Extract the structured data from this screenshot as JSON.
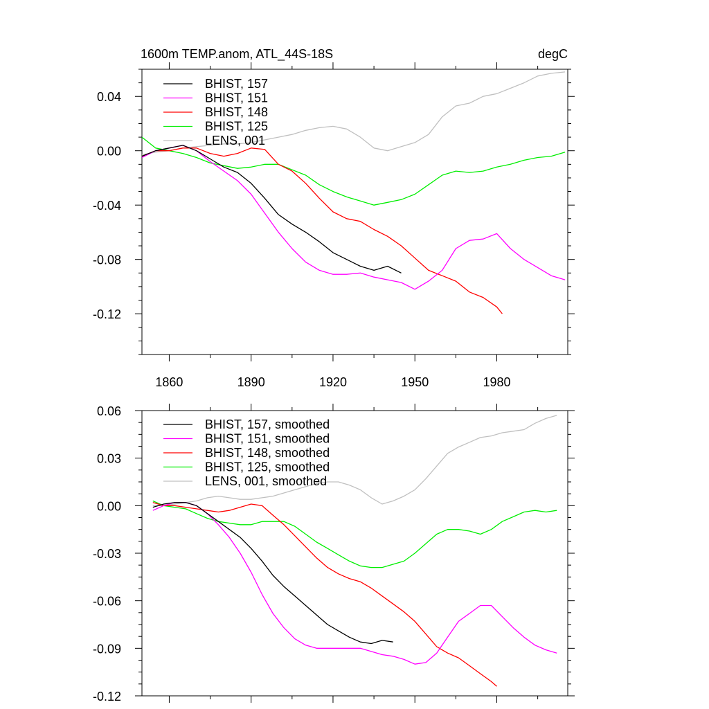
{
  "chart_data": [
    {
      "type": "line",
      "title": "1600m TEMP.anom, ATL_44S-18S",
      "units": "degC",
      "xlim": [
        1850,
        2006
      ],
      "ylim": [
        -0.15,
        0.06
      ],
      "xticks": [
        1860,
        1890,
        1920,
        1950,
        1980
      ],
      "yticks": [
        -0.12,
        -0.08,
        -0.04,
        0.0,
        0.04
      ],
      "ytick_labels": [
        "-0.12",
        "-0.08",
        "-0.04",
        "0.00",
        "0.04"
      ],
      "grid": false,
      "legend_position": "top-left",
      "series": [
        {
          "name": "BHIST, 157",
          "color": "#000000",
          "x": [
            1850,
            1855,
            1860,
            1865,
            1870,
            1875,
            1880,
            1885,
            1890,
            1895,
            1900,
            1905,
            1910,
            1915,
            1920,
            1925,
            1930,
            1935,
            1940,
            1945
          ],
          "y": [
            -0.004,
            0.0,
            0.002,
            0.004,
            0.0,
            -0.006,
            -0.012,
            -0.016,
            -0.024,
            -0.035,
            -0.047,
            -0.054,
            -0.06,
            -0.067,
            -0.075,
            -0.08,
            -0.085,
            -0.088,
            -0.085,
            -0.09
          ]
        },
        {
          "name": "BHIST, 151",
          "color": "#ff00ff",
          "x": [
            1850,
            1855,
            1860,
            1865,
            1870,
            1875,
            1880,
            1885,
            1890,
            1895,
            1900,
            1905,
            1910,
            1915,
            1920,
            1925,
            1930,
            1935,
            1940,
            1945,
            1950,
            1955,
            1960,
            1965,
            1970,
            1975,
            1980,
            1985,
            1990,
            1995,
            2000,
            2005
          ],
          "y": [
            -0.005,
            0.0,
            0.002,
            0.004,
            0.0,
            -0.008,
            -0.015,
            -0.022,
            -0.032,
            -0.046,
            -0.06,
            -0.072,
            -0.082,
            -0.088,
            -0.091,
            -0.091,
            -0.09,
            -0.093,
            -0.095,
            -0.097,
            -0.102,
            -0.096,
            -0.088,
            -0.072,
            -0.066,
            -0.065,
            -0.061,
            -0.072,
            -0.08,
            -0.086,
            -0.092,
            -0.095
          ]
        },
        {
          "name": "BHIST, 148",
          "color": "#ff0000",
          "x": [
            1850,
            1855,
            1860,
            1865,
            1870,
            1875,
            1880,
            1885,
            1890,
            1895,
            1900,
            1905,
            1910,
            1915,
            1920,
            1925,
            1930,
            1935,
            1940,
            1945,
            1950,
            1955,
            1960,
            1965,
            1970,
            1975,
            1980,
            1982
          ],
          "y": [
            -0.004,
            0.0,
            0.0,
            0.002,
            0.002,
            -0.002,
            -0.004,
            -0.002,
            0.002,
            0.001,
            -0.01,
            -0.015,
            -0.024,
            -0.035,
            -0.045,
            -0.05,
            -0.052,
            -0.058,
            -0.063,
            -0.07,
            -0.079,
            -0.088,
            -0.092,
            -0.096,
            -0.104,
            -0.108,
            -0.115,
            -0.12
          ]
        },
        {
          "name": "BHIST, 125",
          "color": "#00ee00",
          "x": [
            1850,
            1855,
            1860,
            1865,
            1870,
            1875,
            1880,
            1885,
            1890,
            1895,
            1900,
            1905,
            1910,
            1915,
            1920,
            1925,
            1930,
            1935,
            1940,
            1945,
            1950,
            1955,
            1960,
            1965,
            1970,
            1975,
            1980,
            1985,
            1990,
            1995,
            2000,
            2005
          ],
          "y": [
            0.01,
            0.002,
            0.0,
            -0.002,
            -0.005,
            -0.009,
            -0.011,
            -0.013,
            -0.012,
            -0.01,
            -0.01,
            -0.014,
            -0.018,
            -0.025,
            -0.03,
            -0.034,
            -0.037,
            -0.04,
            -0.038,
            -0.036,
            -0.032,
            -0.025,
            -0.018,
            -0.015,
            -0.016,
            -0.015,
            -0.012,
            -0.01,
            -0.007,
            -0.005,
            -0.004,
            -0.001
          ]
        },
        {
          "name": "LENS, 001",
          "color": "#c0c0c0",
          "x": [
            1850,
            1855,
            1860,
            1865,
            1870,
            1875,
            1880,
            1885,
            1890,
            1895,
            1900,
            1905,
            1910,
            1915,
            1920,
            1925,
            1930,
            1935,
            1940,
            1945,
            1950,
            1955,
            1960,
            1965,
            1970,
            1975,
            1980,
            1985,
            1990,
            1995,
            2000,
            2005
          ],
          "y": [
            -0.003,
            -0.001,
            0.0,
            0.002,
            0.003,
            0.004,
            0.005,
            0.005,
            0.006,
            0.008,
            0.01,
            0.012,
            0.015,
            0.017,
            0.018,
            0.016,
            0.01,
            0.002,
            0.0,
            0.003,
            0.006,
            0.012,
            0.025,
            0.033,
            0.035,
            0.04,
            0.042,
            0.046,
            0.05,
            0.055,
            0.057,
            0.058
          ]
        }
      ]
    },
    {
      "type": "line",
      "xlim": [
        1850,
        2006
      ],
      "ylim": [
        -0.12,
        0.06
      ],
      "xticks": [
        1860,
        1890,
        1920,
        1950,
        1980
      ],
      "yticks": [
        -0.12,
        -0.09,
        -0.06,
        -0.03,
        0.0,
        0.03,
        0.06
      ],
      "ytick_labels": [
        "-0.12",
        "-0.09",
        "-0.06",
        "-0.03",
        "0.00",
        "0.03",
        "0.06"
      ],
      "grid": false,
      "legend_position": "top-left",
      "series": [
        {
          "name": "BHIST, 157, smoothed",
          "color": "#000000",
          "x": [
            1854,
            1858,
            1862,
            1866,
            1870,
            1874,
            1878,
            1882,
            1886,
            1890,
            1894,
            1898,
            1902,
            1906,
            1910,
            1914,
            1918,
            1922,
            1926,
            1930,
            1934,
            1938,
            1942
          ],
          "y": [
            -0.001,
            0.001,
            0.002,
            0.002,
            0.0,
            -0.005,
            -0.01,
            -0.015,
            -0.02,
            -0.027,
            -0.035,
            -0.044,
            -0.051,
            -0.057,
            -0.063,
            -0.069,
            -0.075,
            -0.079,
            -0.083,
            -0.086,
            -0.087,
            -0.085,
            -0.086
          ]
        },
        {
          "name": "BHIST, 151, smoothed",
          "color": "#ff00ff",
          "x": [
            1854,
            1858,
            1862,
            1866,
            1870,
            1874,
            1878,
            1882,
            1886,
            1890,
            1894,
            1898,
            1902,
            1906,
            1910,
            1914,
            1918,
            1922,
            1926,
            1930,
            1934,
            1938,
            1942,
            1946,
            1950,
            1954,
            1958,
            1962,
            1966,
            1970,
            1974,
            1978,
            1982,
            1986,
            1990,
            1994,
            1998,
            2002
          ],
          "y": [
            -0.003,
            0.0,
            0.002,
            0.002,
            0.0,
            -0.005,
            -0.012,
            -0.02,
            -0.03,
            -0.042,
            -0.056,
            -0.068,
            -0.077,
            -0.084,
            -0.088,
            -0.09,
            -0.09,
            -0.09,
            -0.09,
            -0.09,
            -0.092,
            -0.094,
            -0.095,
            -0.097,
            -0.1,
            -0.099,
            -0.093,
            -0.083,
            -0.073,
            -0.068,
            -0.063,
            -0.063,
            -0.07,
            -0.077,
            -0.083,
            -0.088,
            -0.091,
            -0.093
          ]
        },
        {
          "name": "BHIST, 148, smoothed",
          "color": "#ff0000",
          "x": [
            1854,
            1858,
            1862,
            1866,
            1870,
            1874,
            1878,
            1882,
            1886,
            1890,
            1894,
            1898,
            1902,
            1906,
            1910,
            1914,
            1918,
            1922,
            1926,
            1930,
            1934,
            1938,
            1942,
            1946,
            1950,
            1954,
            1958,
            1962,
            1966,
            1970,
            1974,
            1978,
            1980
          ],
          "y": [
            0.002,
            0.0,
            0.0,
            -0.001,
            -0.002,
            -0.003,
            -0.004,
            -0.003,
            -0.001,
            0.001,
            0.0,
            -0.006,
            -0.012,
            -0.019,
            -0.026,
            -0.033,
            -0.039,
            -0.043,
            -0.046,
            -0.048,
            -0.052,
            -0.057,
            -0.062,
            -0.067,
            -0.073,
            -0.081,
            -0.089,
            -0.093,
            -0.096,
            -0.101,
            -0.106,
            -0.111,
            -0.114
          ]
        },
        {
          "name": "BHIST, 125, smoothed",
          "color": "#00ee00",
          "x": [
            1854,
            1858,
            1862,
            1866,
            1870,
            1874,
            1878,
            1882,
            1886,
            1890,
            1894,
            1898,
            1902,
            1906,
            1910,
            1914,
            1918,
            1922,
            1926,
            1930,
            1934,
            1938,
            1942,
            1946,
            1950,
            1954,
            1958,
            1962,
            1966,
            1970,
            1974,
            1978,
            1982,
            1986,
            1990,
            1994,
            1998,
            2002
          ],
          "y": [
            0.003,
            0.0,
            -0.001,
            -0.002,
            -0.005,
            -0.008,
            -0.01,
            -0.011,
            -0.012,
            -0.012,
            -0.01,
            -0.01,
            -0.01,
            -0.013,
            -0.018,
            -0.023,
            -0.027,
            -0.031,
            -0.035,
            -0.038,
            -0.039,
            -0.039,
            -0.037,
            -0.035,
            -0.03,
            -0.024,
            -0.018,
            -0.015,
            -0.015,
            -0.016,
            -0.018,
            -0.015,
            -0.01,
            -0.007,
            -0.004,
            -0.003,
            -0.004,
            -0.003
          ]
        },
        {
          "name": "LENS, 001, smoothed",
          "color": "#c0c0c0",
          "x": [
            1854,
            1858,
            1862,
            1866,
            1870,
            1874,
            1878,
            1882,
            1886,
            1890,
            1894,
            1898,
            1902,
            1906,
            1910,
            1914,
            1918,
            1922,
            1926,
            1930,
            1934,
            1938,
            1942,
            1946,
            1950,
            1954,
            1958,
            1962,
            1966,
            1970,
            1974,
            1978,
            1982,
            1986,
            1990,
            1994,
            1998,
            2002
          ],
          "y": [
            0.0,
            0.0,
            0.001,
            0.002,
            0.003,
            0.005,
            0.006,
            0.005,
            0.004,
            0.004,
            0.005,
            0.006,
            0.008,
            0.01,
            0.012,
            0.014,
            0.015,
            0.015,
            0.013,
            0.01,
            0.005,
            0.001,
            0.003,
            0.006,
            0.01,
            0.017,
            0.025,
            0.033,
            0.037,
            0.04,
            0.043,
            0.044,
            0.046,
            0.047,
            0.048,
            0.052,
            0.055,
            0.057
          ]
        }
      ]
    }
  ]
}
